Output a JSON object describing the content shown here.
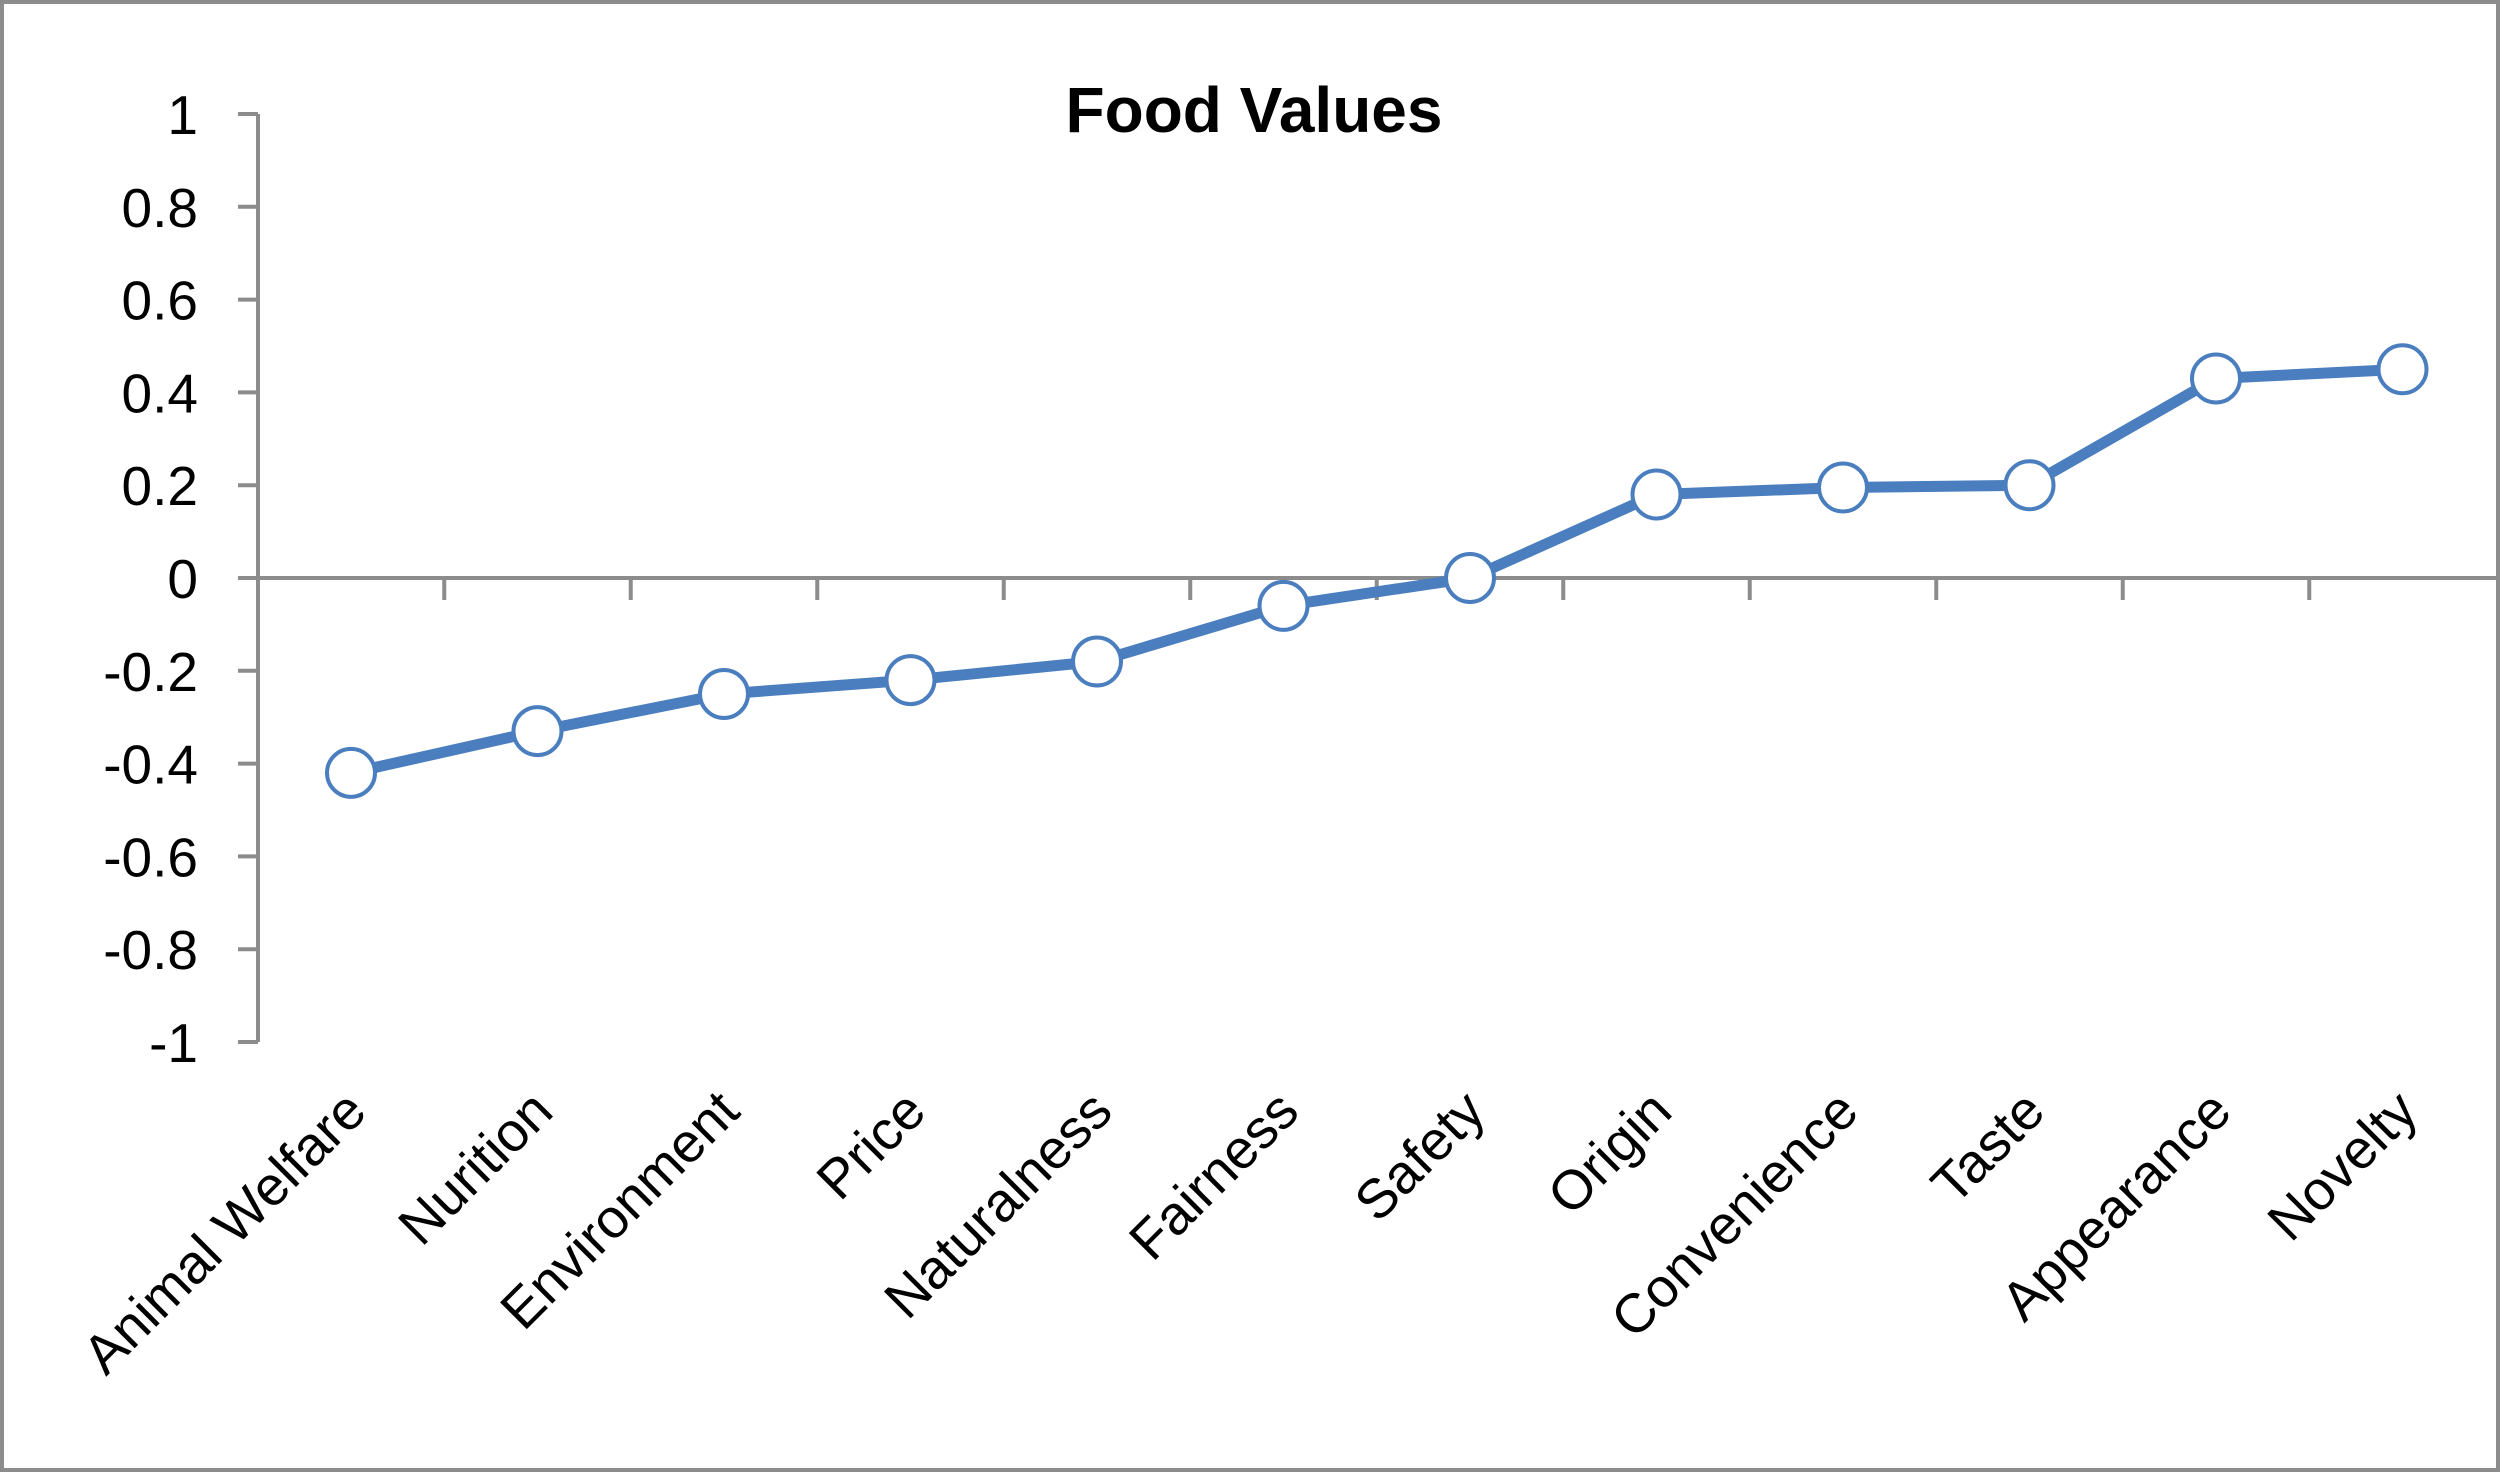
{
  "chart_data": {
    "type": "line",
    "title": "Food Values",
    "xlabel": "",
    "ylabel": "",
    "categories": [
      "Animal Welfare",
      "Nurition",
      "Environment",
      "Price",
      "Naturalness",
      "Fairness",
      "Safety",
      "Origin",
      "Convenience",
      "Taste",
      "Appearance",
      "Novelty"
    ],
    "series": [
      {
        "values": [
          -0.42,
          -0.33,
          -0.25,
          -0.22,
          -0.18,
          -0.06,
          0.0,
          0.18,
          0.195,
          0.2,
          0.43,
          0.45
        ]
      }
    ],
    "ylim": [
      -1,
      1
    ],
    "yticks": [
      "1",
      "0.8",
      "0.6",
      "0.4",
      "0.2",
      "0",
      "-0.2",
      "-0.4",
      "-0.6",
      "-0.8",
      "-1"
    ],
    "ytick_values": [
      1,
      0.8,
      0.6,
      0.4,
      0.2,
      0,
      -0.2,
      -0.4,
      -0.6,
      -0.8,
      -1
    ],
    "grid": false,
    "legend": "none",
    "marker": "hollow-circle",
    "colors": {
      "series": "#4a7ebf",
      "axis": "#8c8c8c",
      "frame": "#8c8c8c"
    }
  }
}
